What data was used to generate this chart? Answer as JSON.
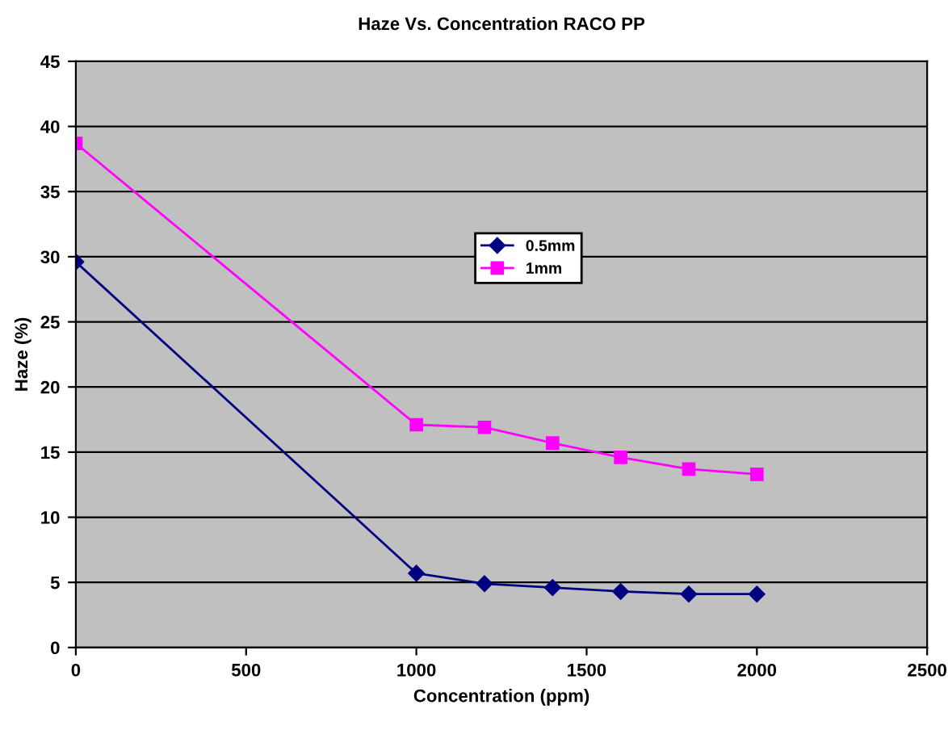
{
  "chart_data": {
    "type": "line",
    "title": "Haze Vs. Concentration RACO PP",
    "xlabel": "Concentration (ppm)",
    "ylabel": "Haze (%)",
    "x": [
      0,
      1000,
      1200,
      1400,
      1600,
      1800,
      2000
    ],
    "series": [
      {
        "name": "0.5mm",
        "color": "#000080",
        "marker": "diamond",
        "values": [
          29.6,
          5.7,
          4.9,
          4.6,
          4.3,
          4.1,
          4.1
        ]
      },
      {
        "name": "1mm",
        "color": "#ff00ff",
        "marker": "square",
        "values": [
          38.7,
          17.1,
          16.9,
          15.7,
          14.6,
          13.7,
          13.3
        ]
      }
    ],
    "xlim": [
      0,
      2500
    ],
    "xticks": [
      0,
      500,
      1000,
      1500,
      2000,
      2500
    ],
    "ylim": [
      0,
      45
    ],
    "yticks": [
      0,
      5,
      10,
      15,
      20,
      25,
      30,
      35,
      40,
      45
    ],
    "grid": "y",
    "legend": "top right",
    "line_style": "solid"
  }
}
